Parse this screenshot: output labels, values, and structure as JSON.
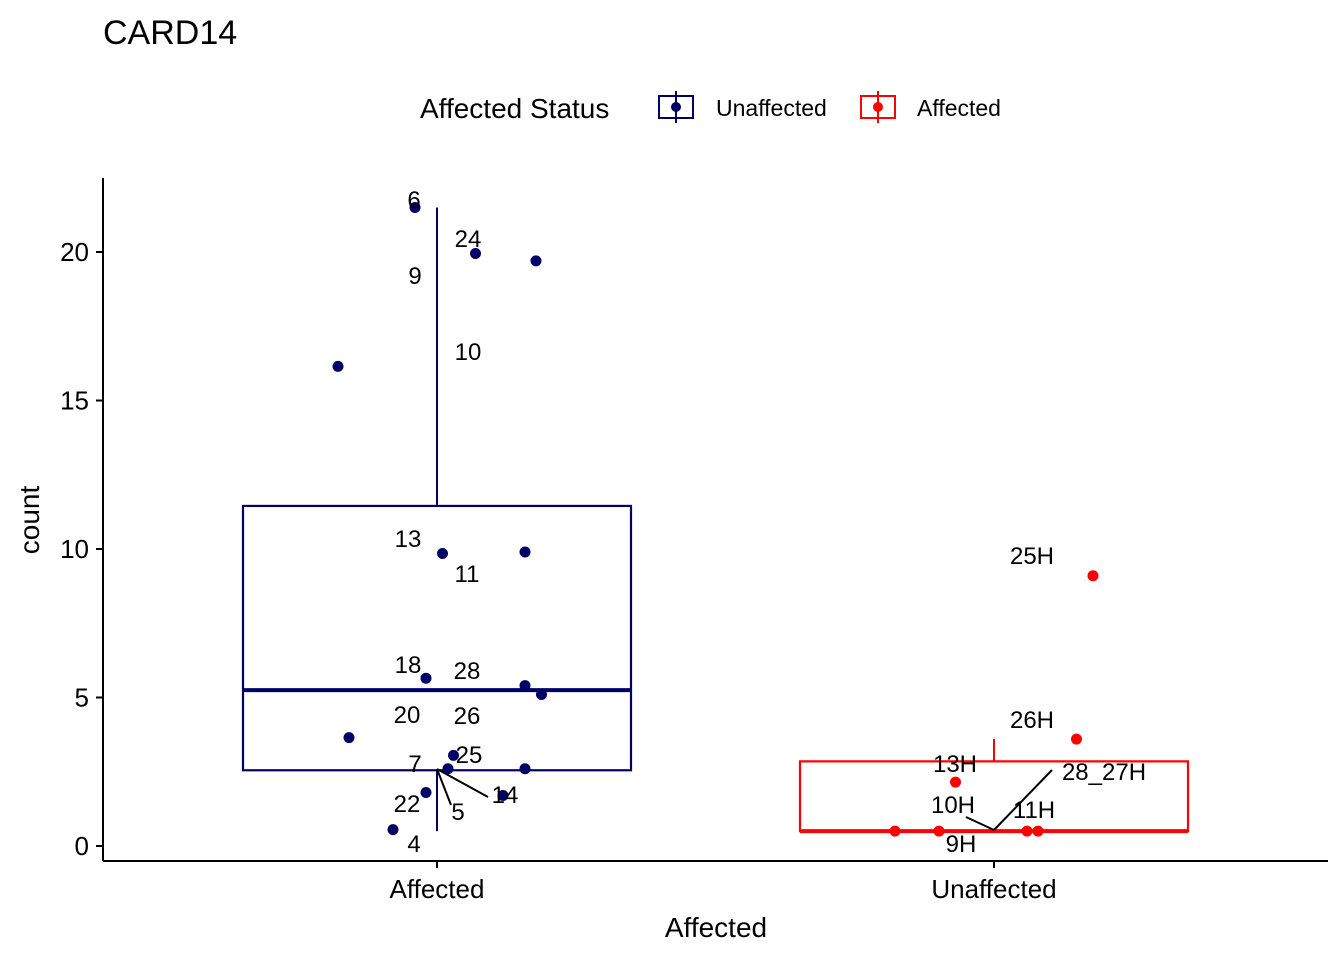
{
  "chart_data": {
    "type": "boxplot",
    "title": "CARD14",
    "xlabel": "Affected",
    "ylabel": "count",
    "ylim": [
      -0.5,
      22.5
    ],
    "yticks": [
      "0",
      "5",
      "10",
      "15",
      "20"
    ],
    "categories": [
      "Affected",
      "Unaffected"
    ],
    "legend": {
      "title": "Affected Status",
      "position": "top",
      "entries": [
        {
          "label": "Unaffected",
          "color": "#000066"
        },
        {
          "label": "Affected",
          "color": "#FF0000"
        }
      ]
    },
    "boxes": [
      {
        "category": "Affected",
        "color": "#000066",
        "min": 0.5,
        "q1": 2.55,
        "median": 5.25,
        "q3": 11.45,
        "max": 21.5
      },
      {
        "category": "Unaffected",
        "color": "#FF0000",
        "min": 0.5,
        "q1": 0.5,
        "median": 0.5,
        "q3": 2.85,
        "max": 3.6
      }
    ],
    "points": [
      {
        "category": "Affected",
        "jitter": -0.04,
        "y": 21.5,
        "label": "6"
      },
      {
        "category": "Affected",
        "jitter": 0.07,
        "y": 19.95,
        "label": "24"
      },
      {
        "category": "Affected",
        "jitter": 0.18,
        "y": 19.7,
        "label": "9"
      },
      {
        "category": "Affected",
        "jitter": -0.18,
        "y": 16.15,
        "label": "10"
      },
      {
        "category": "Affected",
        "jitter": 0.01,
        "y": 9.85,
        "label": "13"
      },
      {
        "category": "Affected",
        "jitter": 0.16,
        "y": 9.9,
        "label": "11"
      },
      {
        "category": "Affected",
        "jitter": -0.02,
        "y": 5.65,
        "label": "18"
      },
      {
        "category": "Affected",
        "jitter": 0.16,
        "y": 5.4,
        "label": "28"
      },
      {
        "category": "Affected",
        "jitter": 0.19,
        "y": 5.1,
        "label": "26"
      },
      {
        "category": "Affected",
        "jitter": -0.16,
        "y": 3.65,
        "label": "20"
      },
      {
        "category": "Affected",
        "jitter": 0.03,
        "y": 3.05,
        "label": "25"
      },
      {
        "category": "Affected",
        "jitter": 0.02,
        "y": 2.6,
        "label": "7"
      },
      {
        "category": "Affected",
        "jitter": 0.16,
        "y": 2.6,
        "label": "5"
      },
      {
        "category": "Affected",
        "jitter": -0.02,
        "y": 1.8,
        "label": "22"
      },
      {
        "category": "Affected",
        "jitter": 0.12,
        "y": 1.7,
        "label": "14"
      },
      {
        "category": "Affected",
        "jitter": -0.08,
        "y": 0.55,
        "label": "4"
      },
      {
        "category": "Unaffected",
        "jitter": 0.18,
        "y": 9.1,
        "label": "25H"
      },
      {
        "category": "Unaffected",
        "jitter": 0.15,
        "y": 3.6,
        "label": "26H"
      },
      {
        "category": "Unaffected",
        "jitter": -0.07,
        "y": 2.15,
        "label": "13H"
      },
      {
        "category": "Unaffected",
        "jitter": -0.18,
        "y": 0.5,
        "label": "10H"
      },
      {
        "category": "Unaffected",
        "jitter": -0.1,
        "y": 0.5,
        "label": "9H"
      },
      {
        "category": "Unaffected",
        "jitter": 0.06,
        "y": 0.5,
        "label": "11H"
      },
      {
        "category": "Unaffected",
        "jitter": 0.08,
        "y": 0.5,
        "label": "28_27H"
      }
    ]
  }
}
